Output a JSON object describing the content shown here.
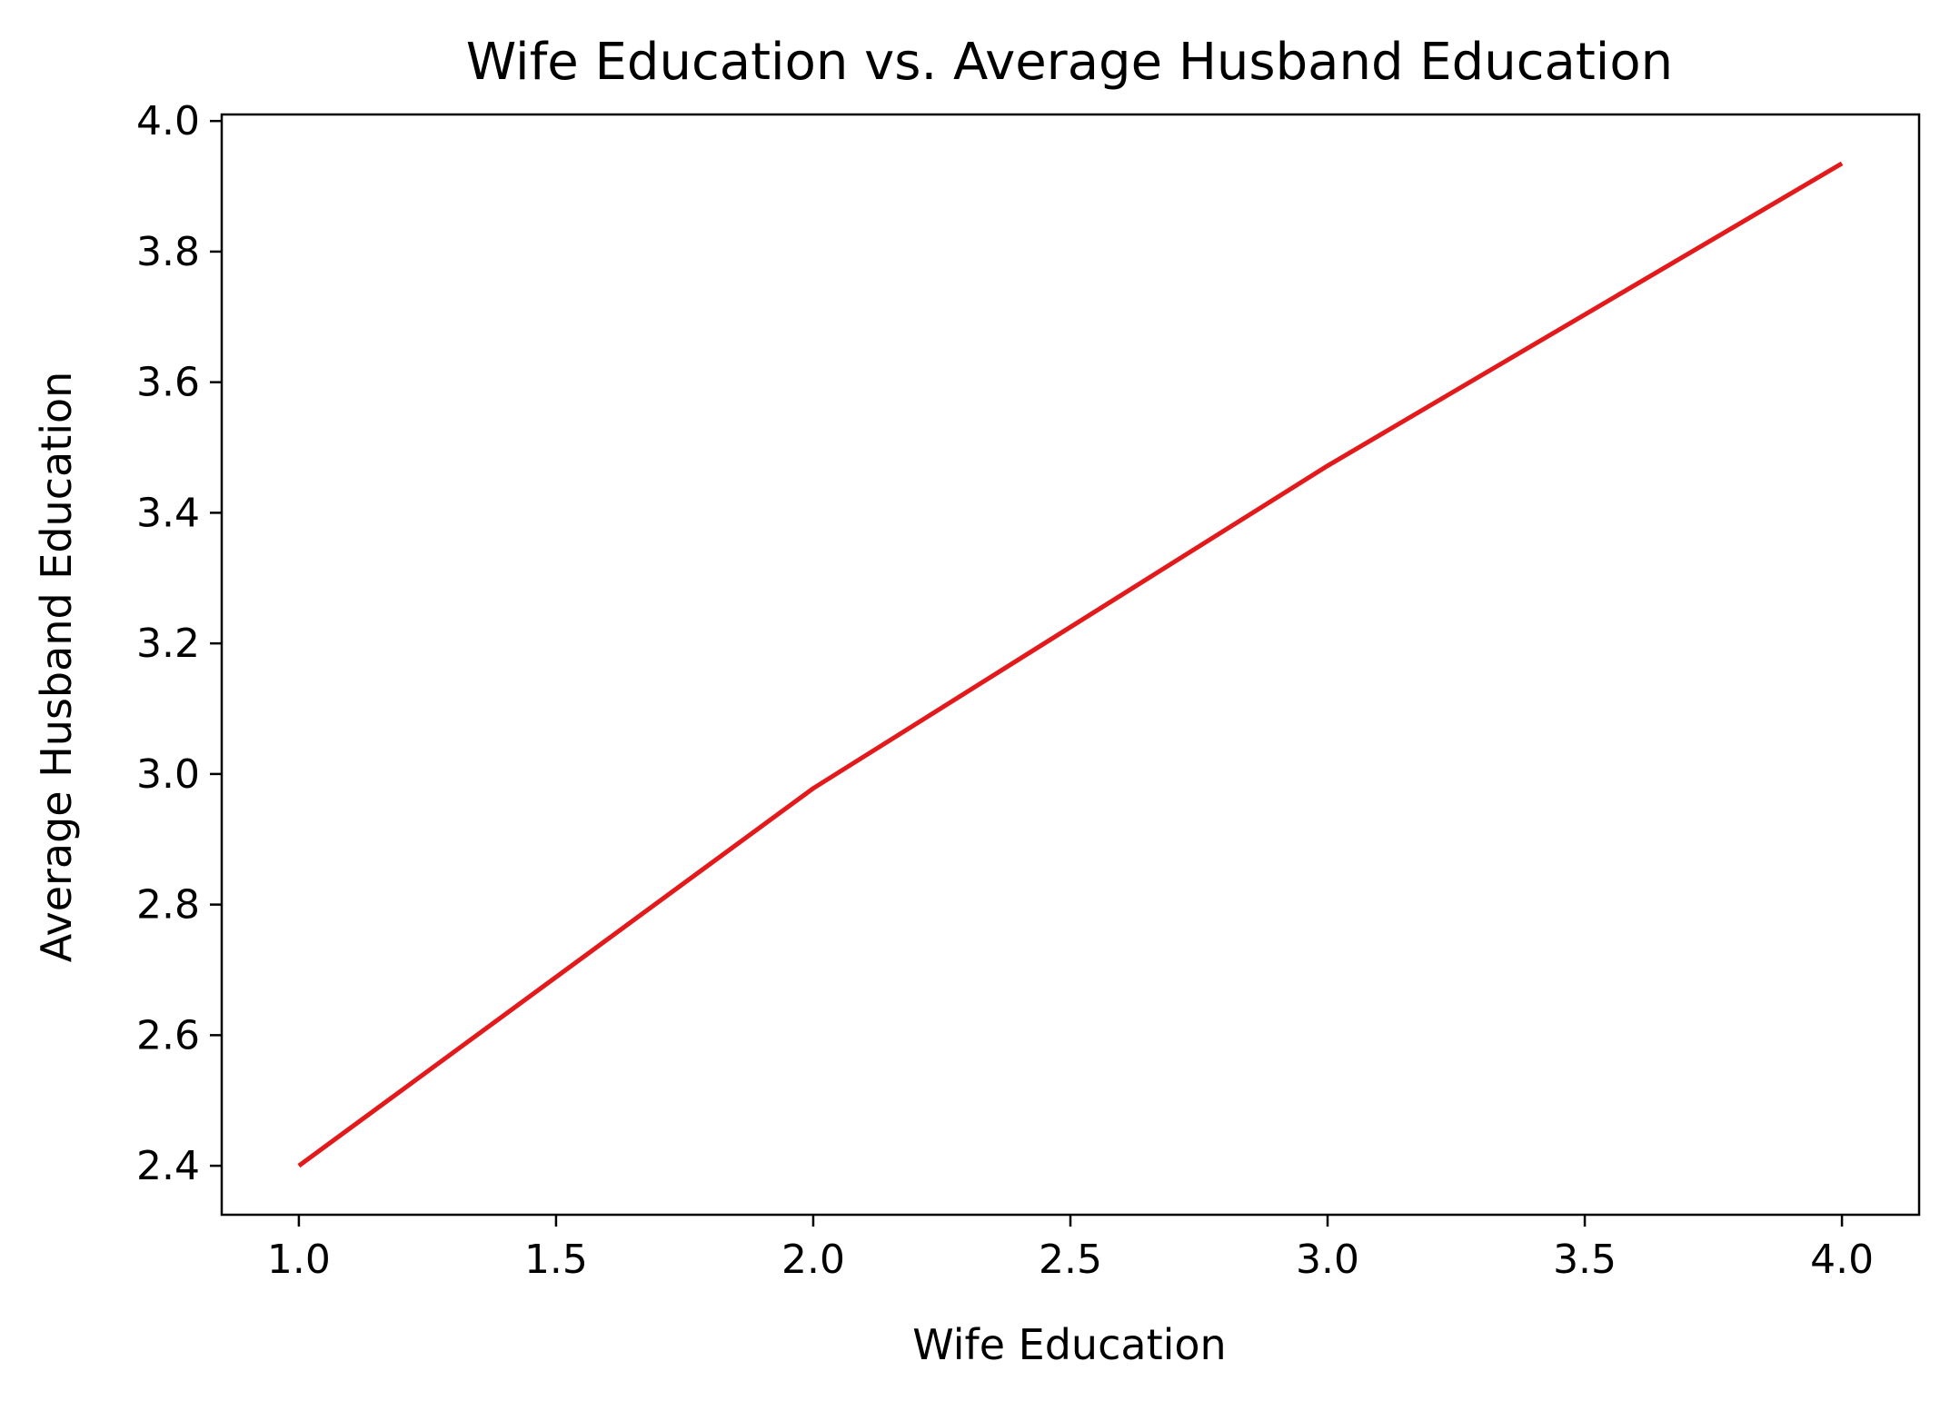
{
  "chart_data": {
    "type": "line",
    "title": "Wife Education vs. Average Husband Education",
    "xlabel": "Wife Education",
    "ylabel": "Average Husband Education",
    "xlim": [
      0.85,
      4.15
    ],
    "ylim": [
      2.325,
      4.01
    ],
    "x_ticks": [
      1.0,
      1.5,
      2.0,
      2.5,
      3.0,
      3.5,
      4.0
    ],
    "x_tick_labels": [
      "1.0",
      "1.5",
      "2.0",
      "2.5",
      "3.0",
      "3.5",
      "4.0"
    ],
    "y_ticks": [
      2.4,
      2.6,
      2.8,
      3.0,
      3.2,
      3.4,
      3.6,
      3.8,
      4.0
    ],
    "y_tick_labels": [
      "2.4",
      "2.6",
      "2.8",
      "3.0",
      "3.2",
      "3.4",
      "3.6",
      "3.8",
      "4.0"
    ],
    "grid": false,
    "series": [
      {
        "x": [
          1.0,
          2.0,
          3.0,
          4.0
        ],
        "y": [
          2.4,
          2.978,
          3.472,
          3.935
        ],
        "color": "#e31a1c"
      }
    ]
  }
}
